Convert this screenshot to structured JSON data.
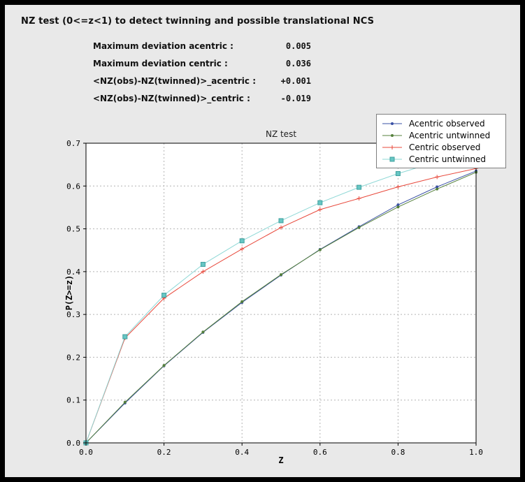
{
  "header": {
    "title": "NZ test (0<=z<1) to detect twinning and possible translational NCS"
  },
  "stats": [
    {
      "label": "Maximum deviation acentric :",
      "value": "0.005"
    },
    {
      "label": "Maximum deviation centric :",
      "value": "0.036"
    },
    {
      "label": "<NZ(obs)-NZ(twinned)>_acentric :",
      "value": "+0.001"
    },
    {
      "label": "<NZ(obs)-NZ(twinned)>_centric :",
      "value": "-0.019"
    }
  ],
  "chart_data": {
    "type": "line",
    "title": "NZ test",
    "xlabel": "Z",
    "ylabel": "P(Z>=z)",
    "xlim": [
      0.0,
      1.0
    ],
    "ylim": [
      0.0,
      0.7
    ],
    "xticks": [
      0.0,
      0.2,
      0.4,
      0.6,
      0.8,
      1.0
    ],
    "xtick_labels": [
      "0.0",
      "0.2",
      "0.4",
      "0.6",
      "0.8",
      "1.0"
    ],
    "yticks": [
      0.0,
      0.1,
      0.2,
      0.3,
      0.4,
      0.5,
      0.6,
      0.7
    ],
    "ytick_labels": [
      "0.0",
      "0.1",
      "0.2",
      "0.3",
      "0.4",
      "0.5",
      "0.6",
      "0.7"
    ],
    "grid": true,
    "grid_color": "#b4b4b4",
    "plot_bg": "#ffffff",
    "legend_position": "top-right",
    "x": [
      0.0,
      0.1,
      0.2,
      0.3,
      0.4,
      0.5,
      0.6,
      0.7,
      0.8,
      0.9,
      1.0
    ],
    "series": [
      {
        "name": "Acentric observed",
        "color": "#3a50a5",
        "marker": "dot",
        "values": [
          0.0,
          0.093,
          0.18,
          0.258,
          0.328,
          0.392,
          0.452,
          0.505,
          0.556,
          0.598,
          0.635
        ]
      },
      {
        "name": "Acentric untwinned",
        "color": "#55803c",
        "marker": "dot",
        "values": [
          0.0,
          0.095,
          0.181,
          0.259,
          0.33,
          0.393,
          0.451,
          0.503,
          0.551,
          0.593,
          0.632
        ]
      },
      {
        "name": "Centric observed",
        "color": "#e8483b",
        "marker": "plus",
        "values": [
          0.0,
          0.245,
          0.338,
          0.4,
          0.453,
          0.503,
          0.545,
          0.571,
          0.598,
          0.621,
          0.641
        ]
      },
      {
        "name": "Centric untwinned",
        "color": "#8ed8d6",
        "marker": "square",
        "marker_fill": "#67c6c4",
        "marker_stroke": "#3fa09e",
        "values": [
          0.0,
          0.248,
          0.345,
          0.417,
          0.472,
          0.519,
          0.561,
          0.597,
          0.629,
          0.657,
          0.683
        ]
      }
    ]
  }
}
